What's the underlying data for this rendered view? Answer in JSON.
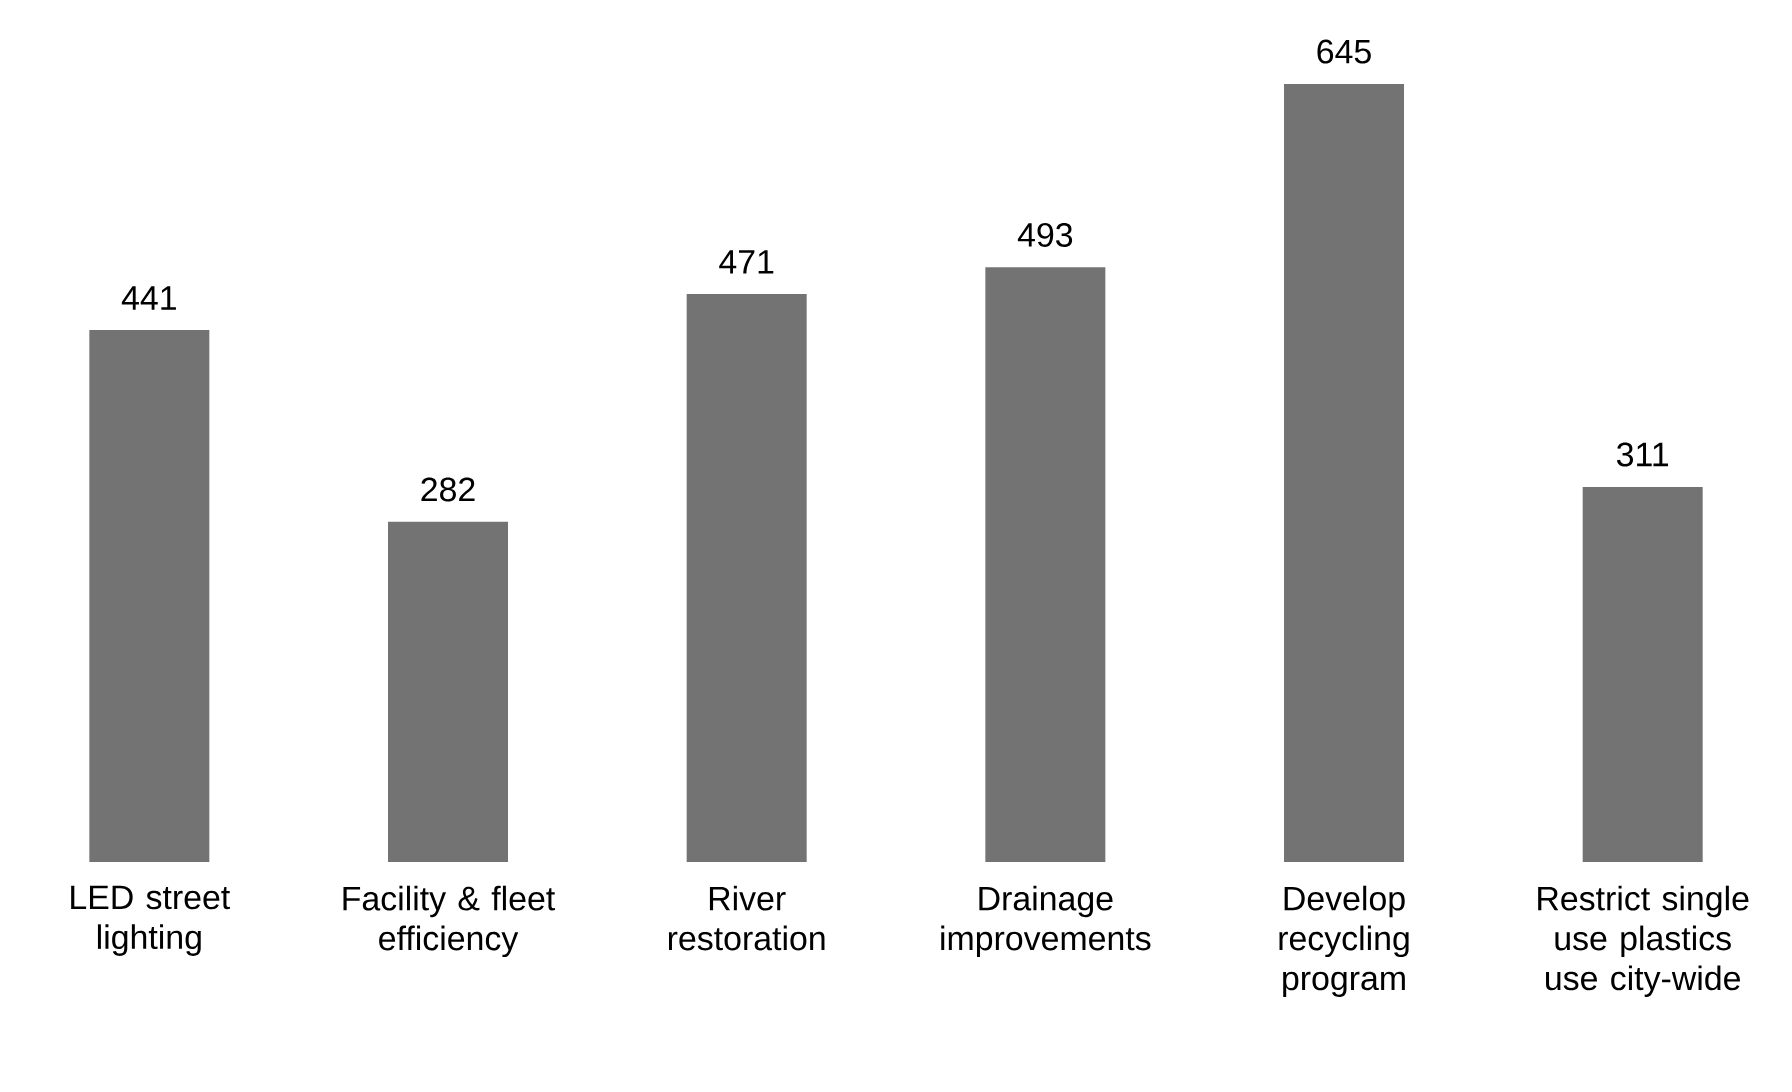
{
  "chart_data": {
    "type": "bar",
    "categories": [
      "LED street lighting",
      "Facility & fleet efficiency",
      "River restoration",
      "Drainage improvements",
      "Develop recycling program",
      "Restrict single use plastics use city-wide"
    ],
    "values": [
      441,
      282,
      471,
      493,
      645,
      311
    ],
    "color": "#737373",
    "data_labels": true
  }
}
